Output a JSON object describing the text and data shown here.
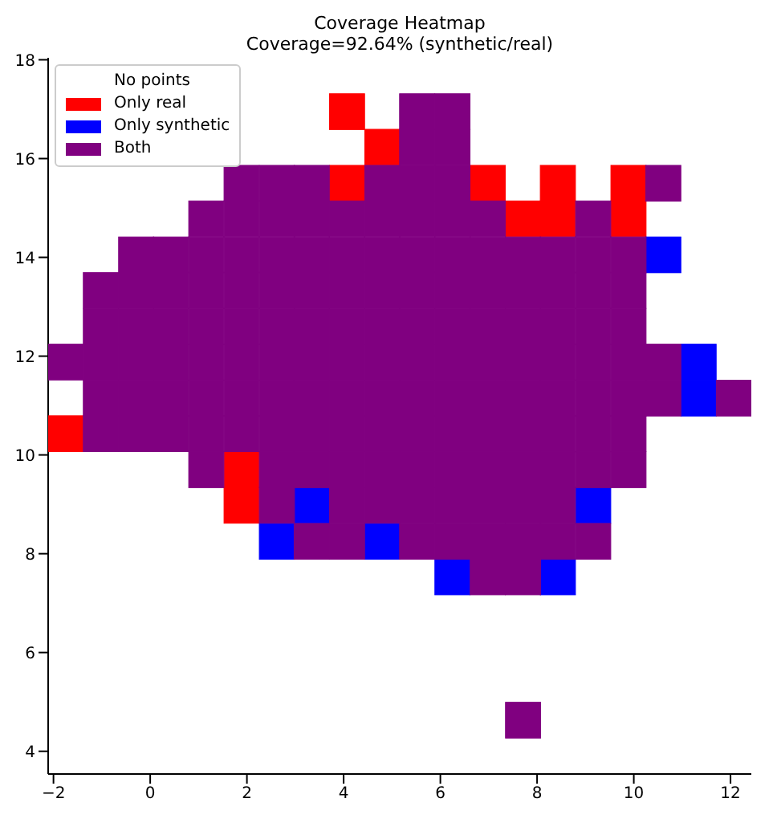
{
  "chart_data": {
    "type": "scatter",
    "title": "Coverage Heatmap",
    "subtitle": "Coverage=92.64% (synthetic/real)",
    "marker": "square",
    "legend": "top left",
    "grid": false,
    "xlim": [
      -2.11,
      12.43
    ],
    "xticks": [
      -2,
      0,
      2,
      4,
      6,
      8,
      10,
      12
    ],
    "ylim": [
      3.54,
      18.04
    ],
    "yticks": [
      4,
      6,
      8,
      10,
      12,
      14,
      16,
      18
    ],
    "series": [
      {
        "name": "No points"
      },
      {
        "name": "Only real",
        "color": "#ff0000",
        "x": [
          4.07,
          4.8,
          4.07,
          6.98,
          8.43,
          9.89,
          7.71,
          8.43,
          9.89,
          -1.75,
          1.89,
          1.89
        ],
        "values": [
          16.95,
          16.23,
          15.5,
          15.5,
          15.5,
          15.5,
          14.78,
          14.78,
          14.78,
          10.43,
          9.7,
          8.98
        ]
      },
      {
        "name": "Only synthetic",
        "color": "#0000ff",
        "x": [
          10.61,
          11.34,
          11.34,
          3.34,
          9.16,
          2.62,
          4.8,
          6.25,
          8.43
        ],
        "values": [
          14.05,
          11.88,
          11.15,
          8.98,
          8.98,
          8.25,
          8.25,
          7.53,
          7.53
        ]
      },
      {
        "name": "Both",
        "color": "#800080",
        "x": [
          5.52,
          6.25,
          5.52,
          6.25,
          1.89,
          2.62,
          3.34,
          4.8,
          5.52,
          6.25,
          10.61,
          1.16,
          1.89,
          2.62,
          3.34,
          4.07,
          4.8,
          5.52,
          6.25,
          6.98,
          9.16,
          -0.29,
          0.43,
          1.16,
          1.89,
          2.62,
          3.34,
          4.07,
          4.8,
          5.52,
          6.25,
          6.98,
          7.71,
          8.43,
          9.16,
          9.89,
          -1.02,
          -0.29,
          0.43,
          1.16,
          1.89,
          2.62,
          3.34,
          4.07,
          4.8,
          5.52,
          6.25,
          6.98,
          7.71,
          8.43,
          9.16,
          9.89,
          -1.02,
          -0.29,
          0.43,
          1.16,
          1.89,
          2.62,
          3.34,
          4.07,
          4.8,
          5.52,
          6.25,
          6.98,
          7.71,
          8.43,
          9.16,
          9.89,
          -1.75,
          -1.02,
          -0.29,
          0.43,
          1.16,
          1.89,
          2.62,
          3.34,
          4.07,
          4.8,
          5.52,
          6.25,
          6.98,
          7.71,
          8.43,
          9.16,
          9.89,
          10.61,
          -1.02,
          -0.29,
          0.43,
          1.16,
          1.89,
          2.62,
          3.34,
          4.07,
          4.8,
          5.52,
          6.25,
          6.98,
          7.71,
          8.43,
          9.16,
          9.89,
          10.61,
          12.07,
          -1.02,
          -0.29,
          0.43,
          1.16,
          1.89,
          2.62,
          3.34,
          4.07,
          4.8,
          5.52,
          6.25,
          6.98,
          7.71,
          8.43,
          9.16,
          9.89,
          1.16,
          2.62,
          3.34,
          4.07,
          4.8,
          5.52,
          6.25,
          6.98,
          7.71,
          8.43,
          9.16,
          9.89,
          2.62,
          4.07,
          4.8,
          5.52,
          6.25,
          6.98,
          7.71,
          8.43,
          3.34,
          4.07,
          5.52,
          6.25,
          6.98,
          7.71,
          8.43,
          9.16,
          6.98,
          7.71,
          7.71
        ],
        "values": [
          16.95,
          16.95,
          16.23,
          16.23,
          15.5,
          15.5,
          15.5,
          15.5,
          15.5,
          15.5,
          15.5,
          14.78,
          14.78,
          14.78,
          14.78,
          14.78,
          14.78,
          14.78,
          14.78,
          14.78,
          14.78,
          14.05,
          14.05,
          14.05,
          14.05,
          14.05,
          14.05,
          14.05,
          14.05,
          14.05,
          14.05,
          14.05,
          14.05,
          14.05,
          14.05,
          14.05,
          13.33,
          13.33,
          13.33,
          13.33,
          13.33,
          13.33,
          13.33,
          13.33,
          13.33,
          13.33,
          13.33,
          13.33,
          13.33,
          13.33,
          13.33,
          13.33,
          12.6,
          12.6,
          12.6,
          12.6,
          12.6,
          12.6,
          12.6,
          12.6,
          12.6,
          12.6,
          12.6,
          12.6,
          12.6,
          12.6,
          12.6,
          12.6,
          11.88,
          11.88,
          11.88,
          11.88,
          11.88,
          11.88,
          11.88,
          11.88,
          11.88,
          11.88,
          11.88,
          11.88,
          11.88,
          11.88,
          11.88,
          11.88,
          11.88,
          11.88,
          11.15,
          11.15,
          11.15,
          11.15,
          11.15,
          11.15,
          11.15,
          11.15,
          11.15,
          11.15,
          11.15,
          11.15,
          11.15,
          11.15,
          11.15,
          11.15,
          11.15,
          11.15,
          10.43,
          10.43,
          10.43,
          10.43,
          10.43,
          10.43,
          10.43,
          10.43,
          10.43,
          10.43,
          10.43,
          10.43,
          10.43,
          10.43,
          10.43,
          10.43,
          9.7,
          9.7,
          9.7,
          9.7,
          9.7,
          9.7,
          9.7,
          9.7,
          9.7,
          9.7,
          9.7,
          9.7,
          8.98,
          8.98,
          8.98,
          8.98,
          8.98,
          8.98,
          8.98,
          8.98,
          8.25,
          8.25,
          8.25,
          8.25,
          8.25,
          8.25,
          8.25,
          8.25,
          7.53,
          7.53,
          4.63
        ]
      }
    ]
  }
}
